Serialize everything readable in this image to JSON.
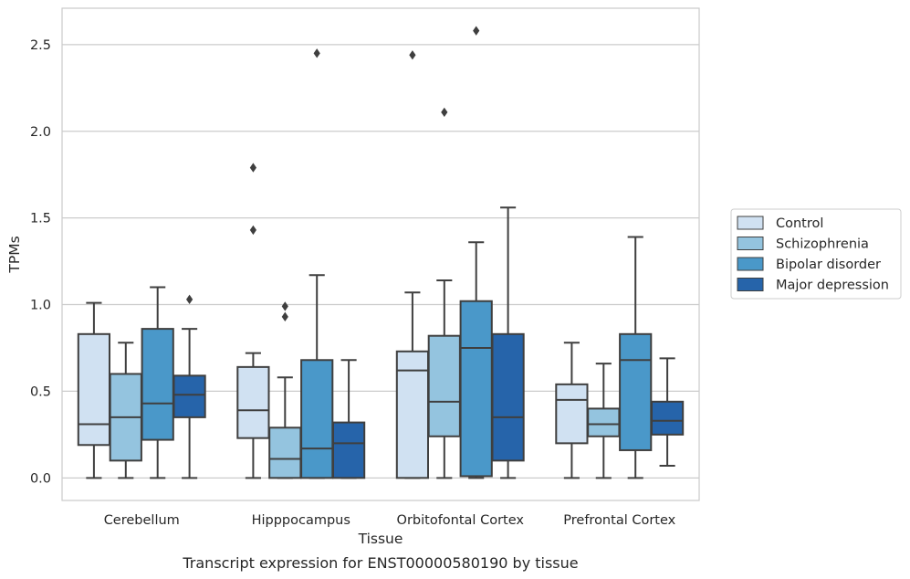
{
  "caption": "Transcript expression for ENST00000580190 by tissue",
  "chart_data": {
    "type": "box",
    "title": "",
    "xlabel": "Tissue",
    "ylabel": "TPMs",
    "ylim": [
      -0.13,
      2.71
    ],
    "yticks": [
      0.0,
      0.5,
      1.0,
      1.5,
      2.0,
      2.5
    ],
    "ytick_labels": [
      "0.0",
      "0.5",
      "1.0",
      "1.5",
      "2.0",
      "2.5"
    ],
    "grid": "horizontal",
    "legend_position": "right",
    "categories": [
      "Cerebellum",
      "Hipppocampus",
      "Orbitofontal Cortex",
      "Prefrontal Cortex"
    ],
    "series": [
      {
        "name": "Control",
        "color": "#d0e1f2",
        "boxes": [
          {
            "whislo": 0.0,
            "q1": 0.19,
            "med": 0.31,
            "q3": 0.83,
            "whishi": 1.01,
            "fliers": []
          },
          {
            "whislo": 0.0,
            "q1": 0.23,
            "med": 0.39,
            "q3": 0.64,
            "whishi": 0.72,
            "fliers": [
              1.79,
              1.43
            ]
          },
          {
            "whislo": 0.0,
            "q1": 0.0,
            "med": 0.62,
            "q3": 0.73,
            "whishi": 1.07,
            "fliers": [
              2.44
            ]
          },
          {
            "whislo": 0.0,
            "q1": 0.2,
            "med": 0.45,
            "q3": 0.54,
            "whishi": 0.78,
            "fliers": []
          }
        ]
      },
      {
        "name": "Schizophrenia",
        "color": "#94c4df",
        "boxes": [
          {
            "whislo": 0.0,
            "q1": 0.1,
            "med": 0.35,
            "q3": 0.6,
            "whishi": 0.78,
            "fliers": []
          },
          {
            "whislo": 0.0,
            "q1": 0.0,
            "med": 0.11,
            "q3": 0.29,
            "whishi": 0.58,
            "fliers": [
              0.99,
              0.93
            ]
          },
          {
            "whislo": 0.0,
            "q1": 0.24,
            "med": 0.44,
            "q3": 0.82,
            "whishi": 1.14,
            "fliers": [
              2.11
            ]
          },
          {
            "whislo": 0.0,
            "q1": 0.24,
            "med": 0.31,
            "q3": 0.4,
            "whishi": 0.66,
            "fliers": []
          }
        ]
      },
      {
        "name": "Bipolar disorder",
        "color": "#4a98c9",
        "boxes": [
          {
            "whislo": 0.0,
            "q1": 0.22,
            "med": 0.43,
            "q3": 0.86,
            "whishi": 1.1,
            "fliers": []
          },
          {
            "whislo": 0.0,
            "q1": 0.0,
            "med": 0.17,
            "q3": 0.68,
            "whishi": 1.17,
            "fliers": [
              2.45
            ]
          },
          {
            "whislo": 0.0,
            "q1": 0.01,
            "med": 0.75,
            "q3": 1.02,
            "whishi": 1.36,
            "fliers": [
              2.58
            ]
          },
          {
            "whislo": 0.0,
            "q1": 0.16,
            "med": 0.68,
            "q3": 0.83,
            "whishi": 1.39,
            "fliers": []
          }
        ]
      },
      {
        "name": "Major depression",
        "color": "#2664aa",
        "boxes": [
          {
            "whislo": 0.0,
            "q1": 0.35,
            "med": 0.48,
            "q3": 0.59,
            "whishi": 0.86,
            "fliers": [
              1.03
            ]
          },
          {
            "whislo": 0.0,
            "q1": 0.0,
            "med": 0.2,
            "q3": 0.32,
            "whishi": 0.68,
            "fliers": []
          },
          {
            "whislo": 0.0,
            "q1": 0.1,
            "med": 0.35,
            "q3": 0.83,
            "whishi": 1.56,
            "fliers": []
          },
          {
            "whislo": 0.07,
            "q1": 0.25,
            "med": 0.33,
            "q3": 0.44,
            "whishi": 0.69,
            "fliers": []
          }
        ]
      }
    ]
  }
}
